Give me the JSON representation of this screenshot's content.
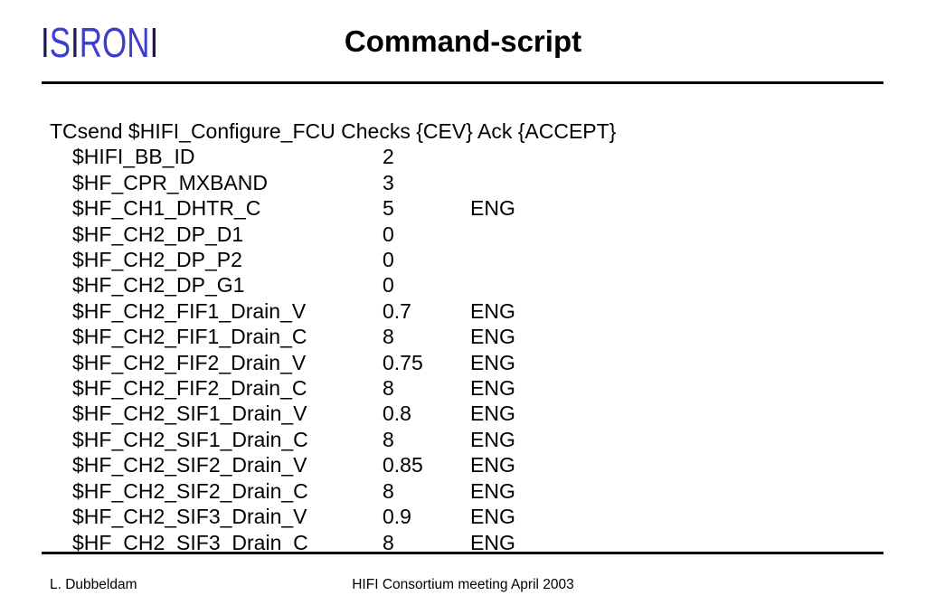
{
  "slide": {
    "logo": {
      "segments": [
        {
          "text": "I",
          "color": "#1c1c4e"
        },
        {
          "text": "S",
          "color": "#3d3dcf"
        },
        {
          "text": "I",
          "color": "#1c1c4e"
        },
        {
          "text": "RON",
          "color": "#3d3dcf"
        },
        {
          "text": "I",
          "color": "#1c1c4e"
        }
      ]
    },
    "title": "Command-script",
    "body": {
      "command_line": "TCsend $HIFI_Configure_FCU Checks {CEV} Ack {ACCEPT}",
      "parameters": [
        {
          "name": "$HIFI_BB_ID",
          "value": "2",
          "unit": ""
        },
        {
          "name": "$HF_CPR_MXBAND",
          "value": "3",
          "unit": ""
        },
        {
          "name": "$HF_CH1_DHTR_C",
          "value": "5",
          "unit": "ENG"
        },
        {
          "name": "$HF_CH2_DP_D1",
          "value": "0",
          "unit": ""
        },
        {
          "name": "$HF_CH2_DP_P2",
          "value": "0",
          "unit": ""
        },
        {
          "name": "$HF_CH2_DP_G1",
          "value": "0",
          "unit": ""
        },
        {
          "name": "$HF_CH2_FIF1_Drain_V",
          "value": "0.7",
          "unit": "ENG"
        },
        {
          "name": "$HF_CH2_FIF1_Drain_C",
          "value": "8",
          "unit": "ENG"
        },
        {
          "name": "$HF_CH2_FIF2_Drain_V",
          "value": "0.75",
          "unit": "ENG"
        },
        {
          "name": "$HF_CH2_FIF2_Drain_C",
          "value": "8",
          "unit": "ENG"
        },
        {
          "name": "$HF_CH2_SIF1_Drain_V",
          "value": "0.8",
          "unit": "ENG"
        },
        {
          "name": "$HF_CH2_SIF1_Drain_C",
          "value": "8",
          "unit": "ENG"
        },
        {
          "name": "$HF_CH2_SIF2_Drain_V",
          "value": "0.85",
          "unit": "ENG"
        },
        {
          "name": "$HF_CH2_SIF2_Drain_C",
          "value": "8",
          "unit": "ENG"
        },
        {
          "name": "$HF_CH2_SIF3_Drain_V",
          "value": "0.9",
          "unit": "ENG"
        },
        {
          "name": "$HF_CH2_SIF3_Drain_C",
          "value": "8",
          "unit": "ENG"
        }
      ]
    },
    "footer": {
      "author": "L. Dubbeldam",
      "event": "HIFI Consortium meeting April 2003"
    },
    "colors": {
      "background": "#ffffff",
      "text": "#000000",
      "rule": "#000000",
      "logo_bar": "#1c1c4e",
      "logo_letters": "#3d3dcf"
    }
  }
}
